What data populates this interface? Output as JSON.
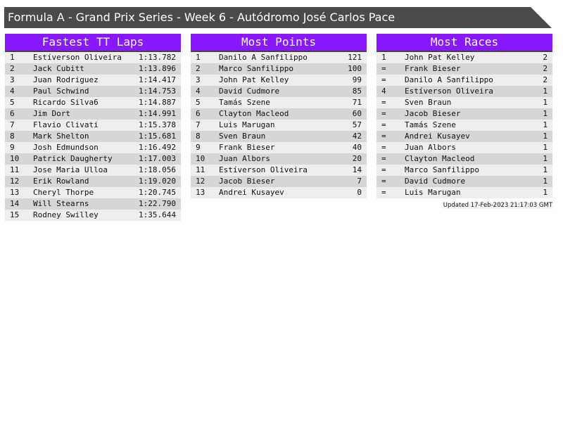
{
  "title": "Formula A - Grand Prix Series - Week 6 - Autódromo José Carlos Pace",
  "panels": [
    {
      "heading": "Fastest TT Laps",
      "rows": [
        [
          "1",
          "Estíverson Oliveira",
          "1:13.782"
        ],
        [
          "2",
          "Jack Cubitt",
          "1:13.896"
        ],
        [
          "3",
          "Juan Rodriguez",
          "1:14.417"
        ],
        [
          "4",
          "Paul Schwind",
          "1:14.753"
        ],
        [
          "5",
          "Ricardo Silva6",
          "1:14.887"
        ],
        [
          "6",
          "Jim Dort",
          "1:14.991"
        ],
        [
          "7",
          "Flavio Clivati",
          "1:15.378"
        ],
        [
          "8",
          "Mark Shelton",
          "1:15.681"
        ],
        [
          "9",
          "Josh Edmundson",
          "1:16.492"
        ],
        [
          "10",
          "Patrick Daugherty",
          "1:17.003"
        ],
        [
          "11",
          "Jose Maria Ulloa",
          "1:18.056"
        ],
        [
          "12",
          "Erik Rowland",
          "1:19.020"
        ],
        [
          "13",
          "Cheryl Thorpe",
          "1:20.745"
        ],
        [
          "14",
          "Will Stearns",
          "1:22.790"
        ],
        [
          "15",
          "Rodney Swilley",
          "1:35.644"
        ]
      ]
    },
    {
      "heading": "Most Points",
      "rows": [
        [
          "1",
          "Danilo A Sanfilippo",
          "121"
        ],
        [
          "2",
          "Marco Sanfilippo",
          "100"
        ],
        [
          "3",
          "John Pat Kelley",
          "99"
        ],
        [
          "4",
          "David Cudmore",
          "85"
        ],
        [
          "5",
          "Tamás Szene",
          "71"
        ],
        [
          "6",
          "Clayton Macleod",
          "60"
        ],
        [
          "7",
          "Luis Marugan",
          "57"
        ],
        [
          "8",
          "Sven Braun",
          "42"
        ],
        [
          "9",
          "Frank Bieser",
          "40"
        ],
        [
          "10",
          "Juan Albors",
          "20"
        ],
        [
          "11",
          "Estíverson Oliveira",
          "14"
        ],
        [
          "12",
          "Jacob Bieser",
          "7"
        ],
        [
          "13",
          "Andrei Kusayev",
          "0"
        ]
      ]
    },
    {
      "heading": "Most Races",
      "rows": [
        [
          "1",
          "John Pat Kelley",
          "2"
        ],
        [
          "=",
          "Frank Bieser",
          "2"
        ],
        [
          "=",
          "Danilo A Sanfilippo",
          "2"
        ],
        [
          "4",
          "Estíverson Oliveira",
          "1"
        ],
        [
          "=",
          "Sven Braun",
          "1"
        ],
        [
          "=",
          "Jacob Bieser",
          "1"
        ],
        [
          "=",
          "Tamás Szene",
          "1"
        ],
        [
          "=",
          "Andrei Kusayev",
          "1"
        ],
        [
          "=",
          "Juan Albors",
          "1"
        ],
        [
          "=",
          "Clayton Macleod",
          "1"
        ],
        [
          "=",
          "Marco Sanfilippo",
          "1"
        ],
        [
          "=",
          "David Cudmore",
          "1"
        ],
        [
          "=",
          "Luis Marugan",
          "1"
        ]
      ]
    }
  ],
  "updated": "Updated 17-Feb-2023 21:17:03 GMT",
  "colors": {
    "header": "#8a18ff",
    "title_bar": "#4a4a4a",
    "row_light": "#eeeeee",
    "row_dark": "#d6d6d6"
  }
}
